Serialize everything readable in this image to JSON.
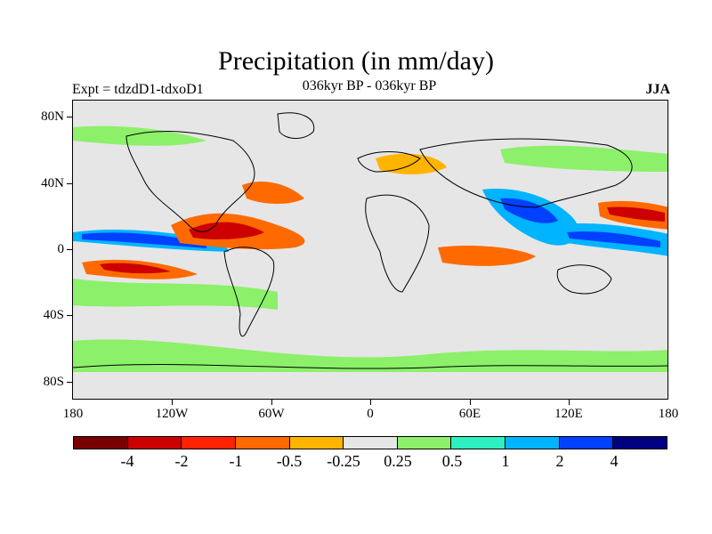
{
  "title": "Precipitation (in mm/day)",
  "subtitle": "036kyr BP - 036kyr BP",
  "experiment": "Expt = tdzdD1-tdxoD1",
  "season": "JJA",
  "lat_labels": [
    "80N",
    "40N",
    "0",
    "40S",
    "80S"
  ],
  "lon_labels": [
    "180",
    "120W",
    "60W",
    "0",
    "60E",
    "120E",
    "180"
  ],
  "colorbar": {
    "labels": [
      "-4",
      "-2",
      "-1",
      "-0.5",
      "-0.25",
      "0.25",
      "0.5",
      "1",
      "2",
      "4"
    ],
    "colors": [
      "#7a0000",
      "#cc0000",
      "#ff2200",
      "#ff6a00",
      "#ffb400",
      "#e6e6e6",
      "#8cf06a",
      "#2ff0c0",
      "#00b4ff",
      "#0040ff",
      "#000080"
    ]
  }
}
